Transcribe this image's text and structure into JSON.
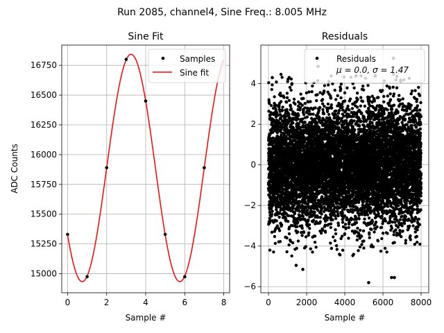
{
  "suptitle": "Run 2085, channel4, Sine Freq.: 8.005 MHz",
  "chart_data": [
    {
      "type": "line",
      "title": "Sine Fit",
      "xlabel": "Sample #",
      "ylabel": "ADC Counts",
      "xlim": [
        -0.3,
        8.3
      ],
      "ylim": [
        14840,
        16920
      ],
      "xticks": [
        0,
        2,
        4,
        6,
        8
      ],
      "yticks": [
        15000,
        15250,
        15500,
        15750,
        16000,
        16250,
        16500,
        16750
      ],
      "grid": true,
      "legend_position": "top-right",
      "series": [
        {
          "name": "Samples",
          "style": "points",
          "color": "#000000",
          "x": [
            0,
            1,
            2,
            3,
            4,
            5,
            6,
            7
          ],
          "y": [
            15330,
            14975,
            15890,
            16800,
            16450,
            15330,
            14975,
            15890
          ]
        },
        {
          "name": "Sine fit",
          "style": "line",
          "color": "#ff0000",
          "model": {
            "amplitude": 955,
            "offset": 15888,
            "period": 5,
            "peak_x": 3.25,
            "x_range": [
              0,
              8
            ]
          }
        }
      ]
    },
    {
      "type": "scatter",
      "title": "Residuals",
      "xlabel": "Sample #",
      "ylabel": "",
      "xlim": [
        -400,
        8400
      ],
      "ylim": [
        -6.3,
        5.9
      ],
      "xticks": [
        0,
        2000,
        4000,
        6000,
        8000
      ],
      "yticks": [
        -6,
        -4,
        -2,
        0,
        2,
        4
      ],
      "grid": true,
      "legend_position": "top-right",
      "legend_text": [
        "Residuals",
        "μ = 0.0, σ = 1.47"
      ],
      "series": [
        {
          "name": "Residuals",
          "color": "#000000",
          "n_points": 8000,
          "mean": 0.0,
          "std": 1.47,
          "x_range": [
            0,
            7999
          ],
          "notable_points": [
            {
              "x": 5250,
              "y": -5.8
            },
            {
              "x": 6450,
              "y": -5.55
            },
            {
              "x": 6600,
              "y": -5.55
            },
            {
              "x": 6550,
              "y": 5.25
            },
            {
              "x": 2600,
              "y": 4.85
            },
            {
              "x": 1800,
              "y": -5.15
            },
            {
              "x": 1450,
              "y": -4.95
            },
            {
              "x": 200,
              "y": 4.3
            }
          ]
        }
      ]
    }
  ]
}
